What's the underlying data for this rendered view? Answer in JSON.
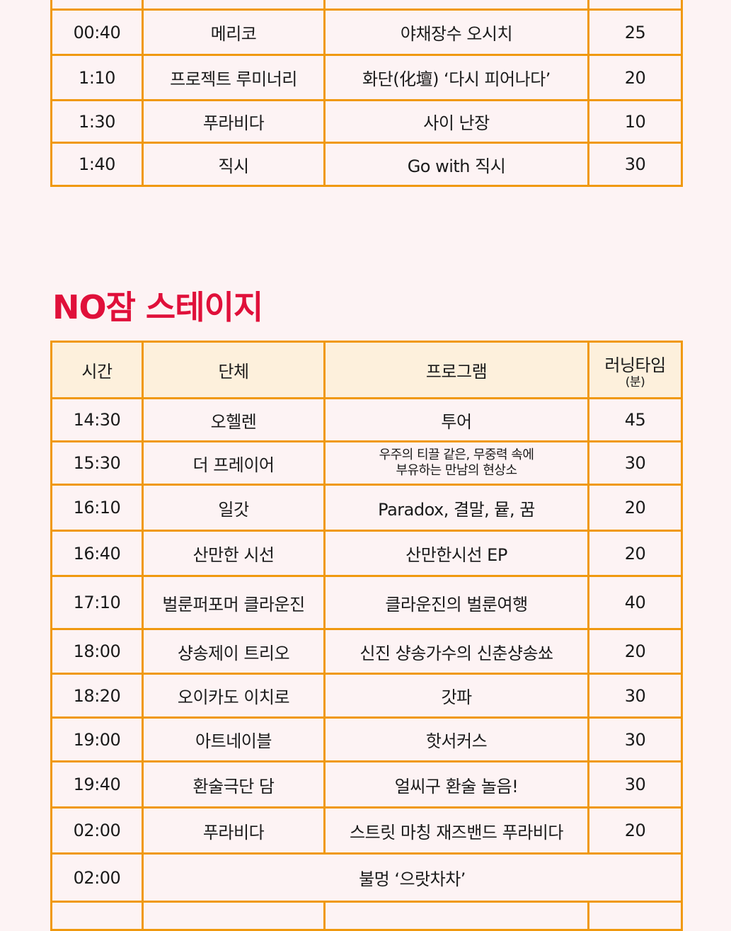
{
  "top_table": {
    "rows": [
      {
        "time": "00:40",
        "group": "메리코",
        "program": "야채장수 오시치",
        "minutes": "25"
      },
      {
        "time": "1:10",
        "group": "프로젝트 루미너리",
        "program": "화단(化壇) ‘다시 피어나다’",
        "minutes": "20"
      },
      {
        "time": "1:30",
        "group": "푸라비다",
        "program": "사이 난장",
        "minutes": "10"
      },
      {
        "time": "1:40",
        "group": "직시",
        "program": "Go with 직시",
        "minutes": "30"
      }
    ]
  },
  "stage": {
    "title": "NO잠 스테이지",
    "header": {
      "time": "시간",
      "group": "단체",
      "program": "프로그램",
      "minutes": "러닝타임",
      "minutes_unit": "(분)"
    },
    "rows": [
      {
        "time": "14:30",
        "group": "오헬렌",
        "program": "투어",
        "minutes": "45"
      },
      {
        "time": "15:30",
        "group": "더 프레이어",
        "program": "우주의 티끌 같은, 무중력 속에\n부유하는 만남의 현상소",
        "minutes": "30"
      },
      {
        "time": "16:10",
        "group": "일갓",
        "program": "Paradox, 결말, 뮽, 꿈",
        "minutes": "20"
      },
      {
        "time": "16:40",
        "group": "산만한 시선",
        "program": "산만한시선 EP",
        "minutes": "20"
      },
      {
        "time": "17:10",
        "group": "벌룬퍼포머 클라운진",
        "program": "클라운진의 벌룬여행",
        "minutes": "40"
      },
      {
        "time": "18:00",
        "group": "샹송제이 트리오",
        "program": "신진 샹송가수의 신춘샹송쑈",
        "minutes": "20"
      },
      {
        "time": "18:20",
        "group": "오이카도 이치로",
        "program": "갓파",
        "minutes": "30"
      },
      {
        "time": "19:00",
        "group": "아트네이블",
        "program": "핫서커스",
        "minutes": "30"
      },
      {
        "time": "19:40",
        "group": "환술극단 담",
        "program": "얼씨구 환술 놀음!",
        "minutes": "30"
      },
      {
        "time": "02:00",
        "group": "푸라비다",
        "program": "스트릿 마칭 재즈밴드 푸라비다",
        "minutes": "20"
      },
      {
        "time": "02:00",
        "merged": "불멍 ‘으랏차차’"
      }
    ]
  }
}
